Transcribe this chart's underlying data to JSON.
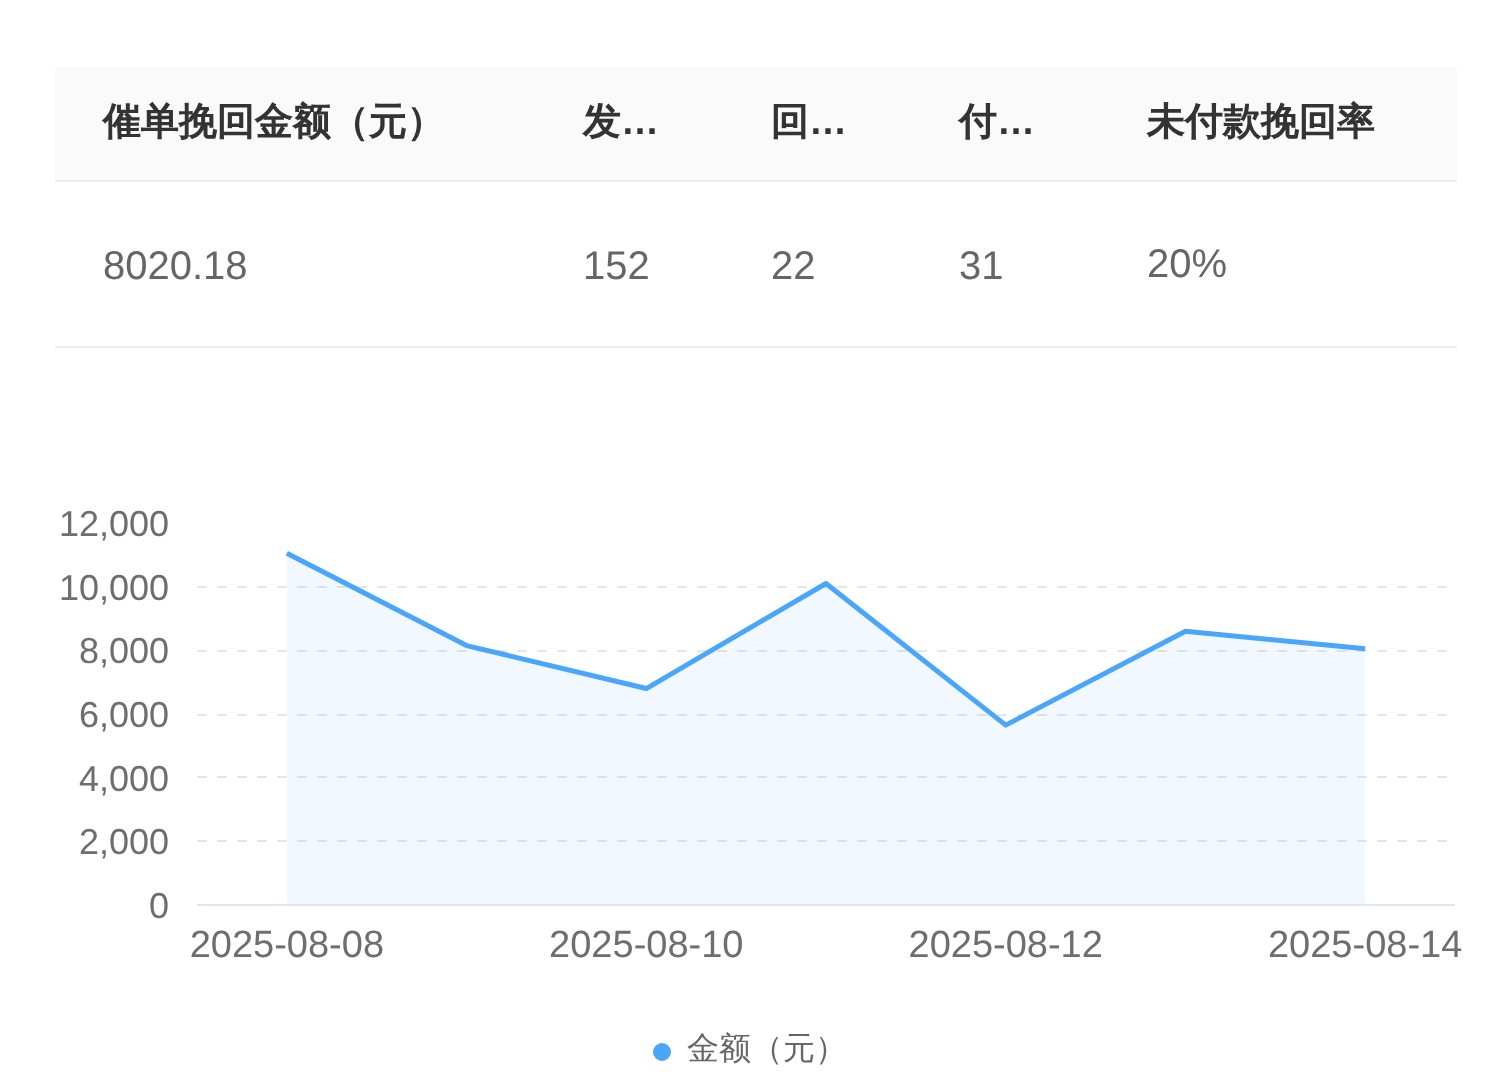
{
  "chart_data": [
    {
      "type": "other",
      "categories": [
        "催单挽回金额（元）",
        "发…",
        "回…",
        "付…",
        "未付款挽回率"
      ],
      "value_labels": [
        "8020.18",
        "152",
        "22",
        "31",
        "20%"
      ]
    },
    {
      "type": "area",
      "categories": [
        "2025-08-08",
        null,
        "2025-08-10",
        null,
        "2025-08-12",
        null,
        "2025-08-14"
      ],
      "series": [
        {
          "name": "金额（元）",
          "color": "#4aa6fb",
          "values": [
            11050,
            8150,
            6800,
            10100,
            5650,
            8600,
            8050
          ]
        }
      ],
      "ylim": [
        0,
        12000
      ],
      "yticks": [
        0,
        {
          "value": 2000,
          "label": "2,000"
        },
        {
          "value": 4000,
          "label": "4,000"
        },
        {
          "value": 6000,
          "label": "6,000"
        },
        {
          "value": 8000,
          "label": "8,000"
        },
        {
          "value": 10000,
          "label": "10,000"
        },
        {
          "value": 12000,
          "label": "12,000"
        }
      ],
      "grid": "y",
      "legend": "bottom"
    }
  ]
}
